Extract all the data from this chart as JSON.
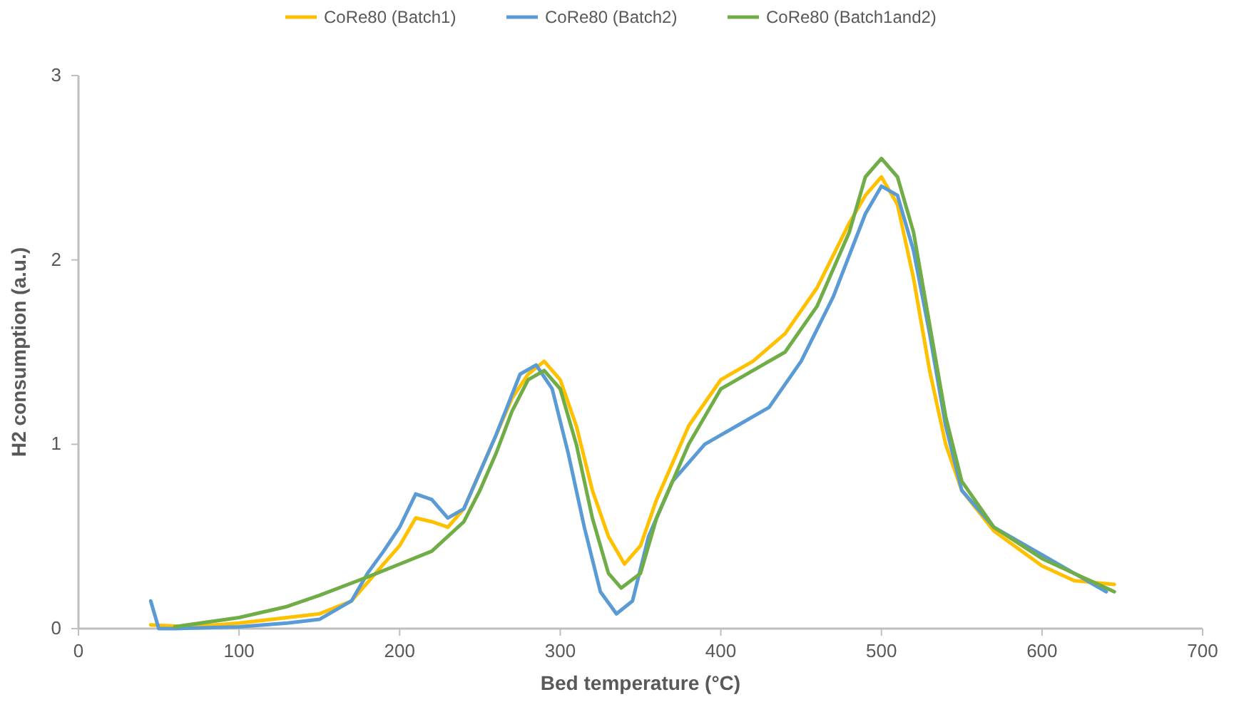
{
  "chart_data": {
    "type": "line",
    "xlabel": "Bed temperature (°C)",
    "ylabel": "H2 consumption (a.u.)",
    "xlim": [
      0,
      700
    ],
    "xticks": [
      0,
      100,
      200,
      300,
      400,
      500,
      600,
      700
    ],
    "ylim": [
      0,
      3
    ],
    "yticks": [
      0,
      1,
      2,
      3
    ],
    "grid": false,
    "legend": "top",
    "marker": "none",
    "line_style": "solid",
    "series": [
      {
        "name": "CoRe80 (Batch1)",
        "color": "#ffc000",
        "x": [
          45,
          70,
          100,
          130,
          150,
          170,
          180,
          190,
          200,
          210,
          220,
          230,
          240,
          250,
          260,
          270,
          280,
          290,
          300,
          310,
          320,
          330,
          340,
          350,
          360,
          370,
          380,
          400,
          420,
          440,
          460,
          480,
          490,
          500,
          510,
          520,
          530,
          540,
          550,
          570,
          600,
          620,
          645
        ],
        "values": [
          0.02,
          0.01,
          0.03,
          0.06,
          0.08,
          0.15,
          0.25,
          0.35,
          0.45,
          0.6,
          0.58,
          0.55,
          0.65,
          0.85,
          1.05,
          1.25,
          1.38,
          1.45,
          1.35,
          1.1,
          0.75,
          0.5,
          0.35,
          0.45,
          0.7,
          0.9,
          1.1,
          1.35,
          1.45,
          1.6,
          1.85,
          2.2,
          2.35,
          2.45,
          2.3,
          1.9,
          1.4,
          1.0,
          0.75,
          0.53,
          0.34,
          0.26,
          0.24
        ]
      },
      {
        "name": "CoRe80 (Batch2)",
        "color": "#5b9bd5",
        "x": [
          45,
          50,
          60,
          100,
          130,
          150,
          170,
          180,
          190,
          200,
          210,
          220,
          230,
          240,
          250,
          260,
          275,
          285,
          295,
          305,
          315,
          325,
          335,
          345,
          355,
          370,
          390,
          410,
          430,
          450,
          470,
          490,
          500,
          510,
          520,
          530,
          540,
          550,
          570,
          600,
          620,
          640
        ],
        "values": [
          0.15,
          0.0,
          0.0,
          0.01,
          0.03,
          0.05,
          0.15,
          0.3,
          0.42,
          0.55,
          0.73,
          0.7,
          0.6,
          0.65,
          0.85,
          1.05,
          1.38,
          1.43,
          1.3,
          0.95,
          0.55,
          0.2,
          0.08,
          0.15,
          0.5,
          0.8,
          1.0,
          1.1,
          1.2,
          1.45,
          1.8,
          2.25,
          2.4,
          2.35,
          2.05,
          1.6,
          1.1,
          0.75,
          0.55,
          0.4,
          0.3,
          0.2
        ]
      },
      {
        "name": "CoRe80 (Batch1and2)",
        "color": "#70ad47",
        "x": [
          60,
          100,
          130,
          150,
          180,
          200,
          220,
          240,
          250,
          260,
          270,
          280,
          290,
          300,
          310,
          320,
          330,
          338,
          350,
          360,
          370,
          380,
          400,
          420,
          440,
          460,
          480,
          490,
          500,
          510,
          520,
          530,
          540,
          550,
          570,
          600,
          620,
          645
        ],
        "values": [
          0.01,
          0.06,
          0.12,
          0.18,
          0.28,
          0.35,
          0.42,
          0.58,
          0.75,
          0.95,
          1.18,
          1.35,
          1.4,
          1.3,
          1.0,
          0.6,
          0.3,
          0.22,
          0.3,
          0.6,
          0.8,
          1.0,
          1.3,
          1.4,
          1.5,
          1.75,
          2.15,
          2.45,
          2.55,
          2.45,
          2.15,
          1.65,
          1.15,
          0.8,
          0.55,
          0.38,
          0.3,
          0.2
        ]
      }
    ]
  }
}
